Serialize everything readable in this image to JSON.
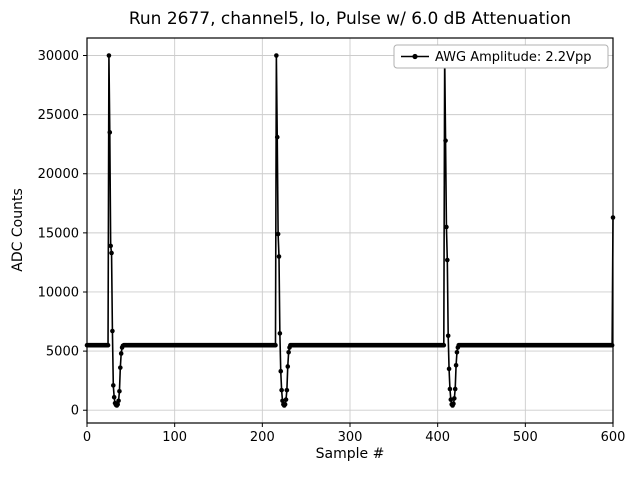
{
  "figure": {
    "title": "Run 2677, channel5, Io, Pulse w/ 6.0 dB Attenuation",
    "xlabel": "Sample #",
    "ylabel": "ADC Counts",
    "legend_label": "AWG Amplitude: 2.2Vpp",
    "background_color": "#ffffff",
    "line_color": "#000000",
    "grid_color": "#cccccc"
  },
  "chart_data": {
    "type": "line",
    "title": "Run 2677, channel5, Io, Pulse w/ 6.0 dB Attenuation",
    "xlabel": "Sample #",
    "ylabel": "ADC Counts",
    "legend": [
      "AWG Amplitude: 2.2Vpp"
    ],
    "legend_position": "upper right",
    "grid": true,
    "marker": "o",
    "line_color": "#000000",
    "xlim": [
      0,
      600
    ],
    "ylim": [
      -1080,
      31480
    ],
    "xticks": [
      0,
      100,
      200,
      300,
      400,
      500,
      600
    ],
    "yticks": [
      0,
      5000,
      10000,
      15000,
      20000,
      25000,
      30000
    ],
    "description": "Baseline ~5500 ADC counts with sharp clipped pulses to 30000 at samples ~25, ~216, ~408 and a rising edge at 600; each pulse is followed by an undershoot to ~400 and recovery to baseline. Values at integer samples are piecewise-linear between anchor_points.",
    "series": [
      {
        "name": "AWG Amplitude: 2.2Vpp",
        "anchor_points": [
          [
            0,
            5500
          ],
          [
            23,
            5500
          ],
          [
            24,
            5500
          ],
          [
            25,
            30000
          ],
          [
            26,
            23500
          ],
          [
            27,
            13900
          ],
          [
            28,
            13300
          ],
          [
            29,
            6700
          ],
          [
            30,
            2100
          ],
          [
            31,
            1100
          ],
          [
            32,
            600
          ],
          [
            33,
            450
          ],
          [
            34,
            400
          ],
          [
            35,
            500
          ],
          [
            36,
            800
          ],
          [
            37,
            1600
          ],
          [
            38,
            3600
          ],
          [
            39,
            4800
          ],
          [
            40,
            5300
          ],
          [
            41,
            5450
          ],
          [
            42,
            5500
          ],
          [
            215,
            5500
          ],
          [
            216,
            30000
          ],
          [
            217,
            23100
          ],
          [
            218,
            14900
          ],
          [
            219,
            13000
          ],
          [
            220,
            6500
          ],
          [
            221,
            3300
          ],
          [
            222,
            1700
          ],
          [
            223,
            800
          ],
          [
            224,
            500
          ],
          [
            225,
            400
          ],
          [
            226,
            500
          ],
          [
            227,
            900
          ],
          [
            228,
            1700
          ],
          [
            229,
            3700
          ],
          [
            230,
            4900
          ],
          [
            231,
            5300
          ],
          [
            232,
            5500
          ],
          [
            407,
            5500
          ],
          [
            408,
            30000
          ],
          [
            409,
            22800
          ],
          [
            410,
            15500
          ],
          [
            411,
            12700
          ],
          [
            412,
            6300
          ],
          [
            413,
            3500
          ],
          [
            414,
            1800
          ],
          [
            415,
            900
          ],
          [
            416,
            500
          ],
          [
            417,
            400
          ],
          [
            418,
            550
          ],
          [
            419,
            1000
          ],
          [
            420,
            1800
          ],
          [
            421,
            3800
          ],
          [
            422,
            4900
          ],
          [
            423,
            5300
          ],
          [
            424,
            5500
          ],
          [
            598,
            5500
          ],
          [
            599,
            5500
          ],
          [
            600,
            16300
          ]
        ]
      }
    ]
  }
}
